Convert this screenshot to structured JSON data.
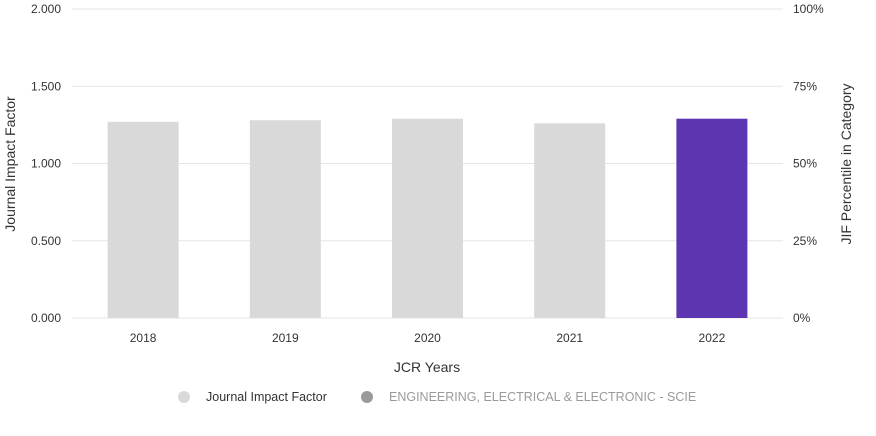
{
  "chart_data": {
    "type": "bar",
    "categories": [
      "2018",
      "2019",
      "2020",
      "2021",
      "2022"
    ],
    "series": [
      {
        "name": "Journal Impact Factor",
        "values": [
          1.27,
          1.28,
          1.29,
          1.26,
          1.29
        ]
      }
    ],
    "highlight_category": "2022",
    "xlabel": "JCR Years",
    "ylabel": "Journal Impact Factor",
    "y2label": "JIF Percentile in Category",
    "ylim": [
      0,
      2
    ],
    "y2lim": [
      0,
      100
    ],
    "y_ticks": [
      "0.000",
      "0.500",
      "1.000",
      "1.500",
      "2.000"
    ],
    "y2_ticks": [
      "0%",
      "25%",
      "50%",
      "75%",
      "100%"
    ],
    "grid": true,
    "legend": {
      "placement": "bottom",
      "entries": [
        {
          "label": "Journal Impact Factor",
          "color": "#d9d9d9",
          "muted": false
        },
        {
          "label": "ENGINEERING, ELECTRICAL & ELECTRONIC - SCIE",
          "color": "#9a9a9a",
          "muted": true
        }
      ]
    },
    "colors": {
      "bar": "#d9d9d9",
      "highlight": "#5e35b1",
      "grid": "#e6e6e6",
      "text": "#333333",
      "muted_text": "#9a9a9a"
    }
  }
}
